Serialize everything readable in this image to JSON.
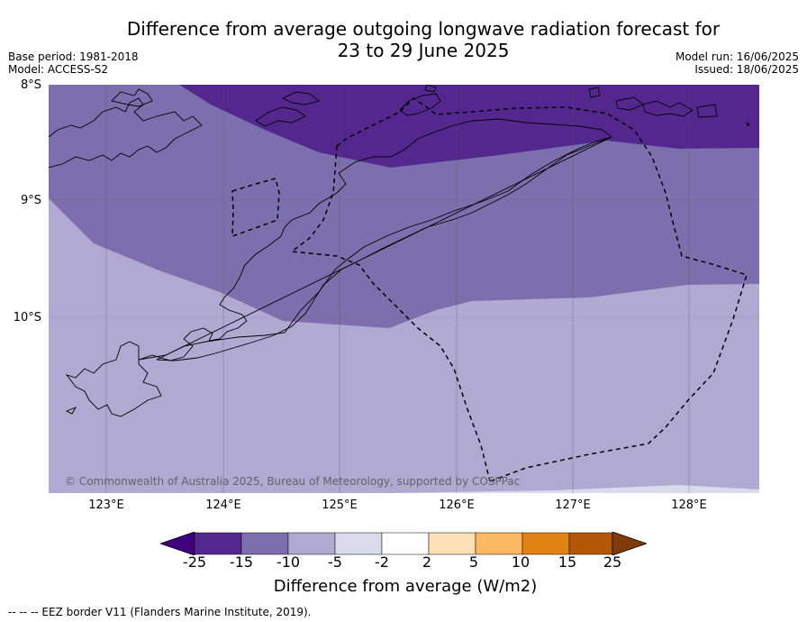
{
  "header": {
    "title_line1": "Difference from average outgoing longwave radiation forecast for",
    "title_line2": "23 to 29 June 2025",
    "base_period": "Base period: 1981-2018",
    "model": "Model: ACCESS-S2",
    "model_run": "Model run: 16/06/2025",
    "issued": "Issued: 18/06/2025"
  },
  "map": {
    "lat_labels": [
      "8°S",
      "9°S",
      "10°S"
    ],
    "lon_labels": [
      "123°E",
      "124°E",
      "125°E",
      "126°E",
      "127°E",
      "128°E"
    ],
    "copyright": "© Commonwealth of Australia 2025, Bureau of Meteorology, supported by COSPPac",
    "colors": {
      "band_lt_minus15": "#54278f",
      "band_minus15_minus10": "#7b70ad",
      "band_minus10_minus5": "#b0aad3",
      "band_minus5_minus2": "#dadaeb",
      "ocean_land_outline": "#000000"
    }
  },
  "colorbar": {
    "tick_labels": [
      "-25",
      "-15",
      "-10",
      "-5",
      "-2",
      "2",
      "5",
      "10",
      "15",
      "25"
    ],
    "colors": [
      "#3f007d",
      "#54278f",
      "#7b70ad",
      "#b0aad3",
      "#dadaeb",
      "#ffffff",
      "#fee0b6",
      "#fdb863",
      "#e08214",
      "#b35806",
      "#7f3b08"
    ],
    "title": "Difference from average (W/m2)"
  },
  "footer": {
    "legend_text": "--  --  -- EEZ border V11 (Flanders Marine Institute, 2019)."
  }
}
